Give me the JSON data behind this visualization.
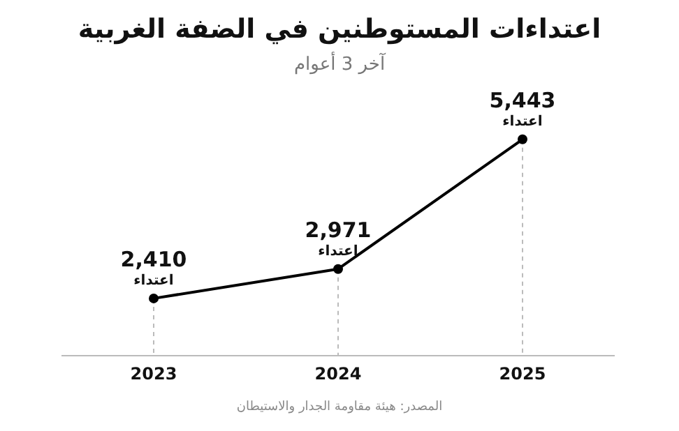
{
  "chart_data": {
    "type": "line",
    "title": "اعتداءات المستوطنين في الضفة الغربية",
    "subtitle": "آخر 3 أعوام",
    "categories": [
      "2023",
      "2024",
      "2025"
    ],
    "series": [
      {
        "color": "#000000",
        "values": [
          2410,
          2971,
          5443
        ],
        "value_labels": [
          "2,410",
          "2,971",
          "5,443"
        ]
      }
    ],
    "marker": "circle",
    "line_style": "solid",
    "grid": "x",
    "annotations": [
      {
        "text": "اعتداء",
        "x": "2023",
        "y": 2410
      },
      {
        "text": "اعتداء",
        "x": "2024",
        "y": 2971
      },
      {
        "text": "اعتداء",
        "x": "2025",
        "y": 5443
      },
      "المصدر: هيئة مقاومة الجدار والاستيطان"
    ]
  }
}
